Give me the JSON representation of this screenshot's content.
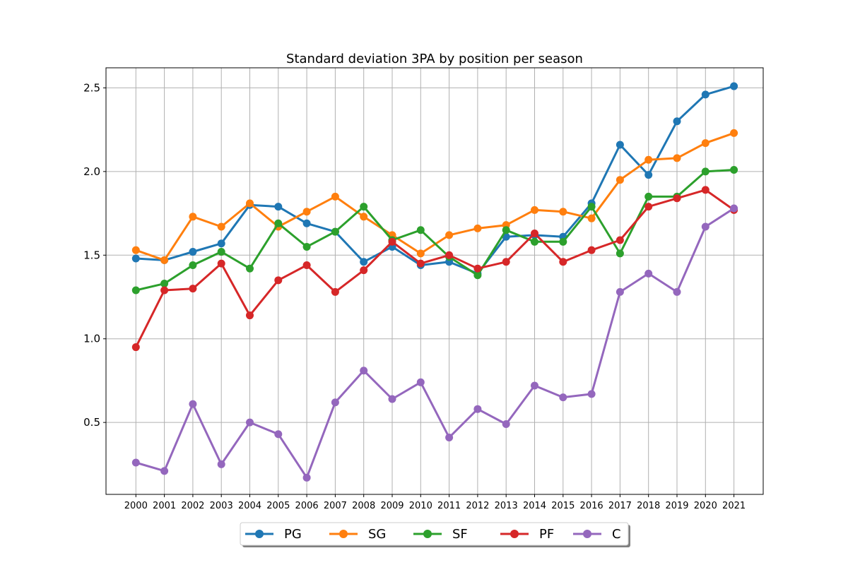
{
  "chart_data": {
    "type": "line",
    "title": "Standard deviation 3PA by position per season",
    "xlabel": "",
    "ylabel": "",
    "ylim": [
      0.07,
      2.62
    ],
    "yticks": [
      0.5,
      1.0,
      1.5,
      2.0,
      2.5
    ],
    "ytick_labels": [
      "0.5",
      "1.0",
      "1.5",
      "2.0",
      "2.5"
    ],
    "grid": true,
    "legend_position": "bottom-center",
    "categories": [
      "2000",
      "2001",
      "2002",
      "2003",
      "2004",
      "2005",
      "2006",
      "2007",
      "2008",
      "2009",
      "2010",
      "2011",
      "2012",
      "2013",
      "2014",
      "2015",
      "2016",
      "2017",
      "2018",
      "2019",
      "2020",
      "2021"
    ],
    "series": [
      {
        "name": "PG",
        "color": "#1f77b4",
        "values": [
          1.48,
          1.47,
          1.52,
          1.57,
          1.8,
          1.79,
          1.69,
          1.64,
          1.46,
          1.55,
          1.44,
          1.46,
          1.39,
          1.61,
          1.62,
          1.61,
          1.81,
          2.16,
          1.98,
          2.3,
          2.46,
          2.51
        ]
      },
      {
        "name": "SG",
        "color": "#ff7f0e",
        "values": [
          1.53,
          1.47,
          1.73,
          1.67,
          1.81,
          1.67,
          1.76,
          1.85,
          1.73,
          1.62,
          1.51,
          1.62,
          1.66,
          1.68,
          1.77,
          1.76,
          1.72,
          1.95,
          2.07,
          2.08,
          2.17,
          2.23
        ]
      },
      {
        "name": "SF",
        "color": "#2ca02c",
        "values": [
          1.29,
          1.33,
          1.44,
          1.52,
          1.42,
          1.69,
          1.55,
          1.64,
          1.79,
          1.59,
          1.65,
          1.49,
          1.38,
          1.65,
          1.58,
          1.58,
          1.79,
          1.51,
          1.85,
          1.85,
          2.0,
          2.01
        ]
      },
      {
        "name": "PF",
        "color": "#d62728",
        "values": [
          0.95,
          1.29,
          1.3,
          1.45,
          1.14,
          1.35,
          1.44,
          1.28,
          1.41,
          1.58,
          1.45,
          1.5,
          1.42,
          1.46,
          1.63,
          1.46,
          1.53,
          1.59,
          1.79,
          1.84,
          1.89,
          1.77
        ]
      },
      {
        "name": "C",
        "color": "#9467bd",
        "values": [
          0.26,
          0.21,
          0.61,
          0.25,
          0.5,
          0.43,
          0.17,
          0.62,
          0.81,
          0.64,
          0.74,
          0.41,
          0.58,
          0.49,
          0.72,
          0.65,
          0.67,
          1.28,
          1.39,
          1.28,
          1.67,
          1.78
        ]
      }
    ]
  }
}
